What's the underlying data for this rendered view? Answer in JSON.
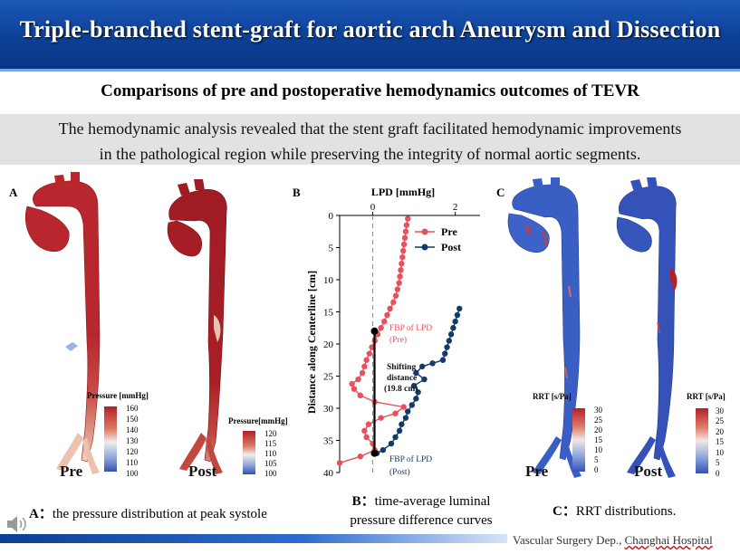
{
  "header": {
    "title": "Triple-branched stent-graft for aortic arch Aneurysm and Dissection"
  },
  "subtitle": "Comparisons of pre and postoperative hemodynamics outcomes of TEVR",
  "summary": [
    "The hemodynamic analysis revealed that the stent graft facilitated hemodynamic improvements",
    "in the pathological region while preserving the integrity of normal aortic segments."
  ],
  "panel_a": {
    "letter": "A",
    "pre_label": "Pre",
    "post_label": "Post",
    "pre_scale": {
      "title": "Pressure [mmHg]",
      "ticks": [
        "160",
        "150",
        "140",
        "130",
        "120",
        "110",
        "100"
      ]
    },
    "post_scale": {
      "title": "Pressure[mmHg]",
      "ticks": [
        "120",
        "115",
        "110",
        "105",
        "100"
      ]
    },
    "caption_prefix": "A：",
    "caption": "the pressure distribution at peak systole"
  },
  "panel_b": {
    "letter": "B",
    "caption_prefix": "B：",
    "caption_line1": "time-average luminal",
    "caption_line2": "pressure difference curves",
    "annotations": {
      "fbp_pre_1": "FBP of LPD",
      "fbp_pre_2": "(Pre)",
      "shift_1": "Shifting",
      "shift_2": "distance",
      "shift_3": "(19.8 cm)",
      "fbp_post_1": "FBP of LPD",
      "fbp_post_2": "(Post)"
    }
  },
  "chart_data": {
    "type": "line",
    "title": "",
    "xlabel": "LPD [mmHg]",
    "ylabel": "Distance along Centerline [cm]",
    "xlim": [
      -0.8,
      2.6
    ],
    "ylim": [
      0,
      40
    ],
    "y_inverted": true,
    "x_ticks": [
      0,
      2
    ],
    "y_ticks": [
      0,
      5,
      10,
      15,
      20,
      25,
      30,
      35,
      40
    ],
    "legend_position": "top-right",
    "series": [
      {
        "name": "Pre",
        "color": "#e8505b",
        "points": [
          [
            0.85,
            0.5
          ],
          [
            0.82,
            1.5
          ],
          [
            0.8,
            2.5
          ],
          [
            0.78,
            3.5
          ],
          [
            0.76,
            4.5
          ],
          [
            0.74,
            5.5
          ],
          [
            0.72,
            6.5
          ],
          [
            0.7,
            7.5
          ],
          [
            0.68,
            8.5
          ],
          [
            0.66,
            9.5
          ],
          [
            0.64,
            10.5
          ],
          [
            0.6,
            11.5
          ],
          [
            0.56,
            12.5
          ],
          [
            0.5,
            13.5
          ],
          [
            0.42,
            14.5
          ],
          [
            0.35,
            15.5
          ],
          [
            0.28,
            16.5
          ],
          [
            0.2,
            17.5
          ],
          [
            0.12,
            18.5
          ],
          [
            0.05,
            19.5
          ],
          [
            -0.02,
            20.5
          ],
          [
            -0.08,
            21.5
          ],
          [
            -0.15,
            22.5
          ],
          [
            -0.2,
            23.5
          ],
          [
            -0.25,
            24.5
          ],
          [
            -0.35,
            25.5
          ],
          [
            -0.5,
            26.2
          ],
          [
            -0.45,
            27
          ],
          [
            -0.3,
            28
          ],
          [
            0.05,
            29
          ],
          [
            0.75,
            29.8
          ],
          [
            0.55,
            30.8
          ],
          [
            0.2,
            31.5
          ],
          [
            -0.1,
            32.5
          ],
          [
            -0.2,
            33.5
          ],
          [
            -0.15,
            34.5
          ],
          [
            0.0,
            35.5
          ],
          [
            0.05,
            36.5
          ],
          [
            -0.3,
            37.5
          ],
          [
            -0.8,
            38.5
          ]
        ]
      },
      {
        "name": "Post",
        "color": "#123a6a",
        "points": [
          [
            2.1,
            14.5
          ],
          [
            2.05,
            15.5
          ],
          [
            2.0,
            16.5
          ],
          [
            1.95,
            17.5
          ],
          [
            1.9,
            18.5
          ],
          [
            1.85,
            19.5
          ],
          [
            1.8,
            20.5
          ],
          [
            1.75,
            21.5
          ],
          [
            1.7,
            22.5
          ],
          [
            1.45,
            23
          ],
          [
            1.2,
            23.5
          ],
          [
            1.05,
            24.5
          ],
          [
            1.25,
            25.5
          ],
          [
            1.0,
            26.5
          ],
          [
            1.1,
            27.5
          ],
          [
            1.05,
            28.5
          ],
          [
            0.95,
            29.5
          ],
          [
            0.85,
            30.5
          ],
          [
            0.8,
            31.5
          ],
          [
            0.7,
            32.5
          ],
          [
            0.65,
            33.5
          ],
          [
            0.55,
            34.5
          ],
          [
            0.45,
            35.5
          ],
          [
            0.25,
            36.5
          ],
          [
            0.1,
            37
          ]
        ]
      }
    ],
    "markers": {
      "fbp_pre_y": 18,
      "fbp_post_y": 37,
      "shift_cm": 19.8
    }
  },
  "panel_c": {
    "letter": "C",
    "pre_label": "Pre",
    "post_label": "Post",
    "pre_scale": {
      "title": "RRT [s/Pa]",
      "ticks": [
        "30",
        "25",
        "20",
        "15",
        "10",
        "5",
        "0"
      ]
    },
    "post_scale": {
      "title": "RRT [s/Pa]",
      "ticks": [
        "30",
        "25",
        "20",
        "15",
        "10",
        "5",
        "0"
      ]
    },
    "caption_prefix": "C：",
    "caption": "RRT distributions."
  },
  "footer": {
    "dept": "Vascular Surgery Dep., ",
    "hospital": "Changhai Hospital"
  },
  "colors": {
    "banner": "#0c3f95",
    "pressure_high": "#b3202a",
    "rrt_low": "#3a5fc4",
    "pre": "#e8505b",
    "post": "#123a6a"
  },
  "icons": {
    "speaker": "speaker-icon"
  }
}
